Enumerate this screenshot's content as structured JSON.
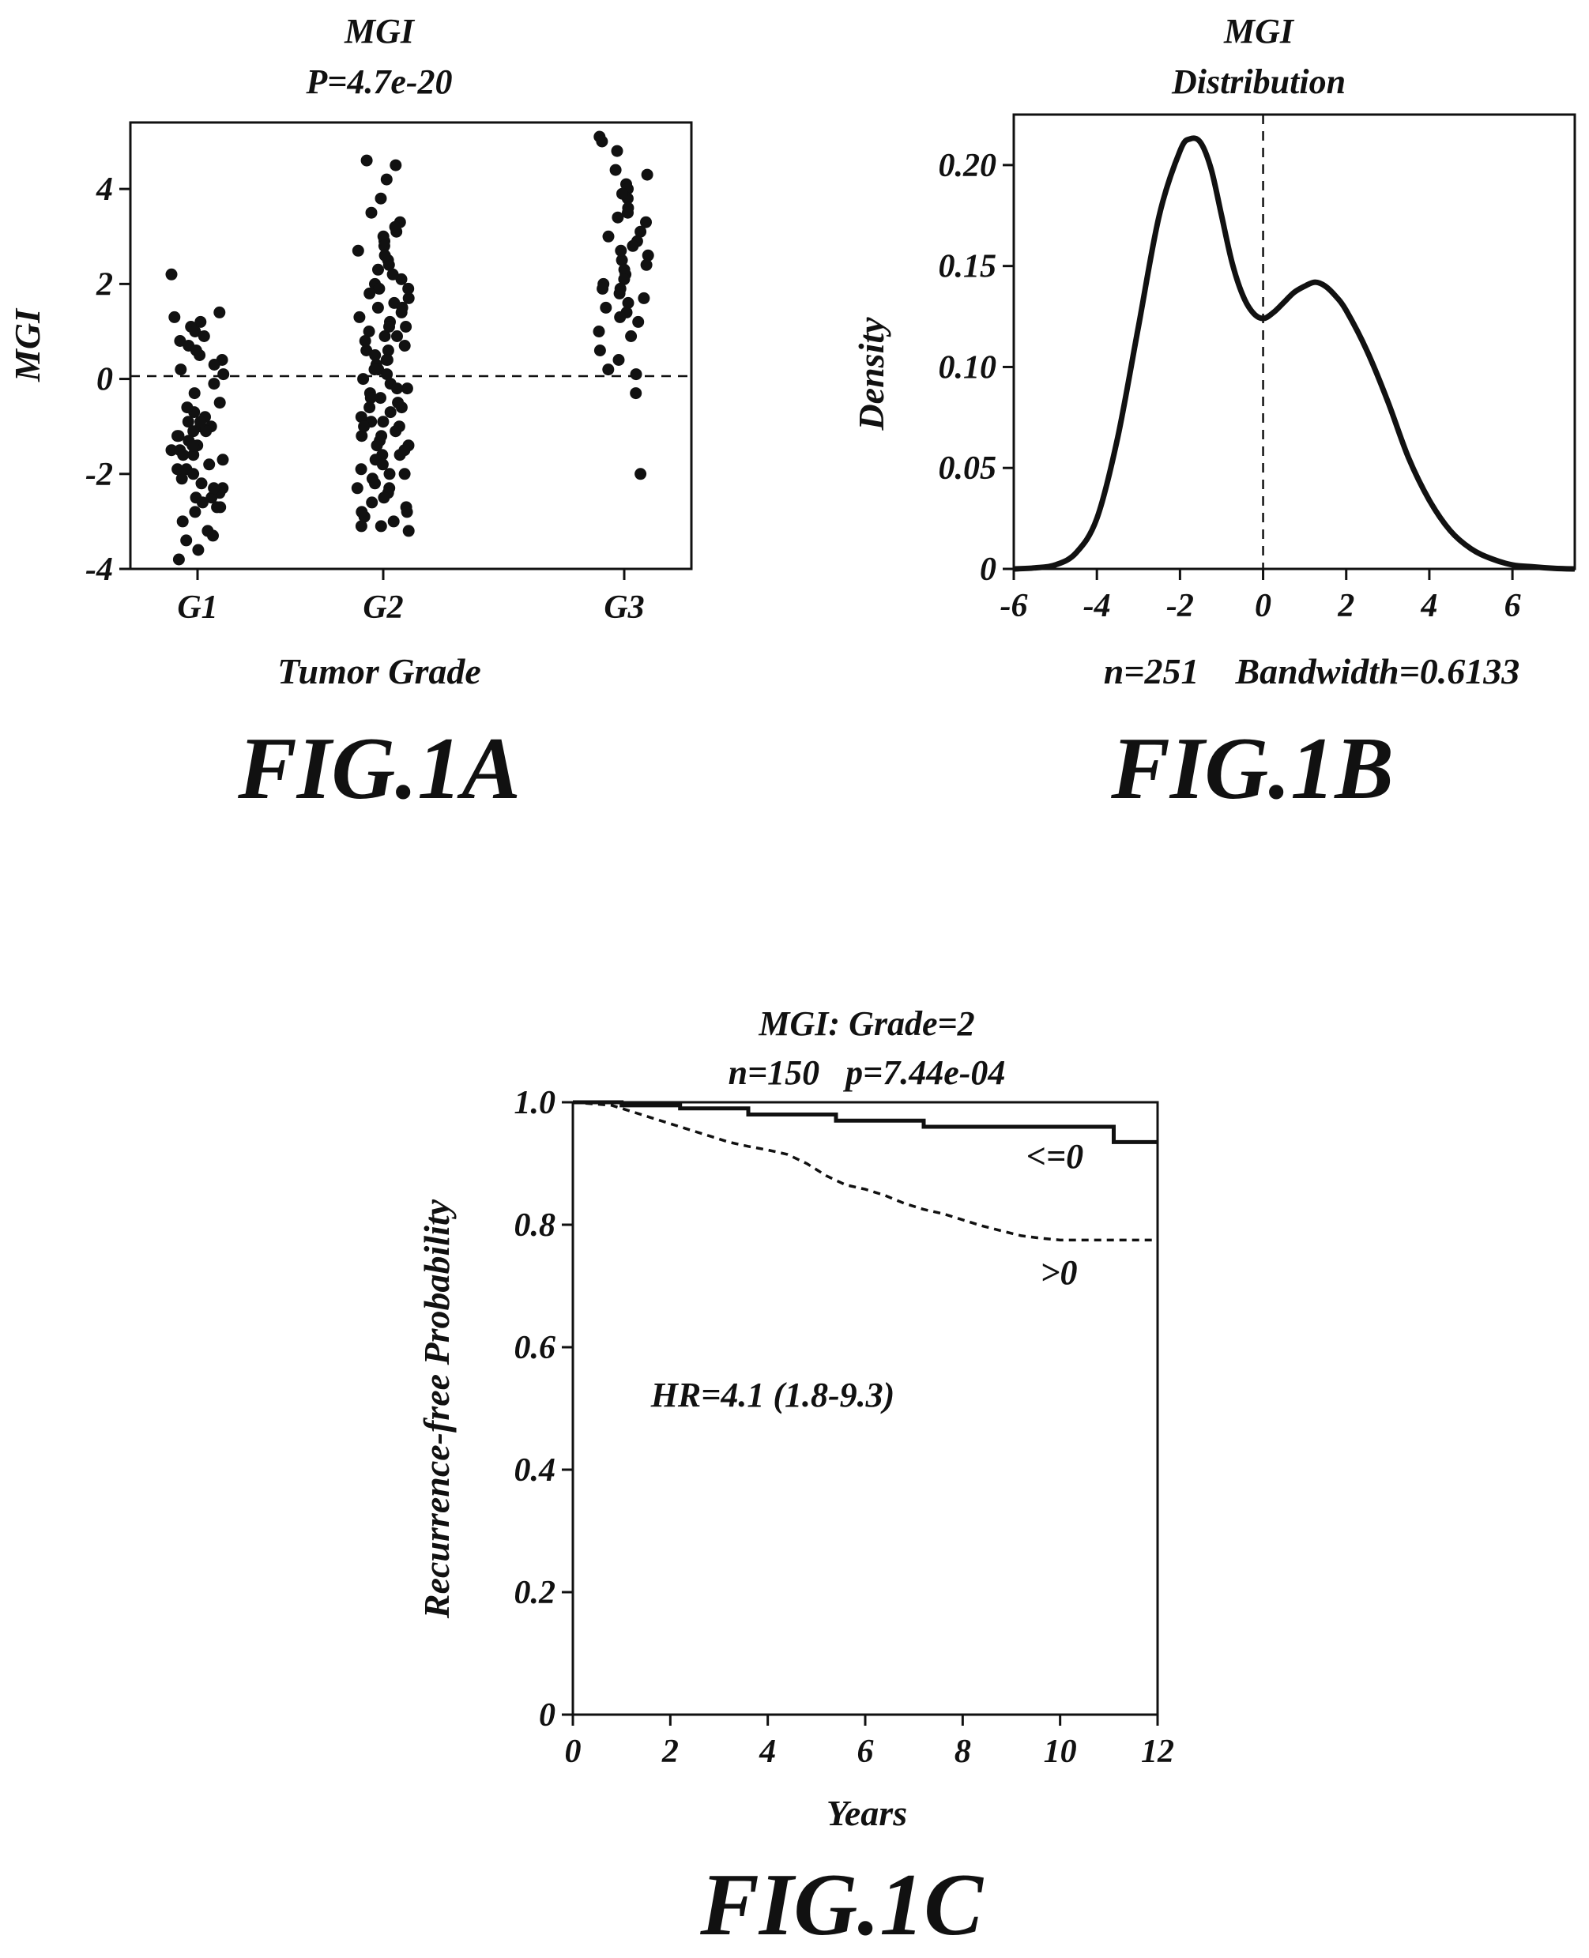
{
  "chart_data": [
    {
      "id": "fig1a",
      "type": "scatter",
      "title": "MGI",
      "subtitle": "P=4.7e-20",
      "xlabel": "Tumor Grade",
      "ylabel": "MGI",
      "categories": [
        "G1",
        "G2",
        "G3"
      ],
      "x_ticks": [
        "G1",
        "G2",
        "G3"
      ],
      "y_ticks": [
        -4,
        -2,
        0,
        2,
        4
      ],
      "ylim": [
        -4,
        5.4
      ],
      "reference_line": 0,
      "figure_label": "FIG.1A",
      "series": [
        {
          "category": "G1",
          "values": [
            2.2,
            1.4,
            1.3,
            1.2,
            1.1,
            1.0,
            0.9,
            0.8,
            0.7,
            0.5,
            0.4,
            0.3,
            0.2,
            0.1,
            -0.1,
            -0.3,
            -0.5,
            -0.7,
            -0.8,
            -0.9,
            -1.0,
            -1.0,
            -1.1,
            -1.1,
            -1.2,
            -1.3,
            -1.4,
            -1.5,
            -1.5,
            -1.6,
            -1.7,
            -1.8,
            -1.9,
            -2.0,
            -2.1,
            -2.2,
            -2.3,
            -2.4,
            -2.5,
            -2.5,
            -2.6,
            -2.7,
            -2.8,
            -3.0,
            -3.2,
            -3.3,
            -3.4,
            -3.6,
            -3.8,
            -1.2,
            -0.6,
            -1.9,
            -2.3,
            -0.9,
            -1.4,
            -2.7,
            0.6,
            -1.6
          ]
        },
        {
          "category": "G2",
          "values": [
            4.6,
            4.5,
            4.2,
            3.8,
            3.5,
            3.3,
            3.1,
            3.0,
            2.9,
            2.8,
            2.7,
            2.5,
            2.4,
            2.3,
            2.1,
            2.0,
            1.9,
            1.8,
            1.7,
            1.6,
            1.5,
            1.4,
            1.3,
            1.2,
            1.1,
            1.0,
            0.9,
            0.8,
            0.7,
            0.6,
            0.5,
            0.4,
            0.3,
            0.2,
            0.1,
            0.0,
            -0.1,
            -0.2,
            -0.3,
            -0.4,
            -0.5,
            -0.6,
            -0.7,
            -0.8,
            -0.9,
            -1.0,
            -1.1,
            -1.2,
            -1.3,
            -1.4,
            -1.5,
            -1.6,
            -1.7,
            -1.8,
            -1.9,
            -2.0,
            -2.1,
            -2.2,
            -2.3,
            -2.4,
            -2.5,
            -2.6,
            -2.7,
            -2.8,
            -2.9,
            -3.0,
            -3.1,
            -3.2,
            2.6,
            1.5,
            0.6,
            -0.4,
            -1.2,
            -2.3,
            3.2,
            0.2,
            -0.6,
            -1.6,
            1.9,
            -0.9,
            -2.8,
            0.9,
            -1.4,
            2.2,
            -0.2,
            -2.0,
            1.1,
            -1.0,
            -3.1,
            0.4
          ]
        },
        {
          "category": "G3",
          "values": [
            5.1,
            5.0,
            4.8,
            4.4,
            4.3,
            4.1,
            4.0,
            3.8,
            3.6,
            3.5,
            3.4,
            3.3,
            3.1,
            3.0,
            2.9,
            2.8,
            2.6,
            2.5,
            2.4,
            2.3,
            2.2,
            2.1,
            2.0,
            1.9,
            1.8,
            1.7,
            1.6,
            1.5,
            1.4,
            1.2,
            1.0,
            0.9,
            0.6,
            0.4,
            0.2,
            0.1,
            -0.3,
            -2.0,
            3.9,
            2.7,
            1.9,
            1.3
          ]
        }
      ]
    },
    {
      "id": "fig1b",
      "type": "line",
      "title": "MGI",
      "subtitle": "Distribution",
      "ylabel": "Density",
      "xlabel": "n=251    Bandwidth=0.6133",
      "x_ticks": [
        -6,
        -4,
        -2,
        0,
        2,
        4,
        6
      ],
      "y_ticks": [
        0,
        0.05,
        0.1,
        0.15,
        0.2
      ],
      "y_tick_labels": [
        "0",
        "0.05",
        "0.10",
        "0.15",
        "0.20"
      ],
      "xlim": [
        -6,
        7.5
      ],
      "ylim": [
        0,
        0.225
      ],
      "reference_line_x": 0,
      "figure_label": "FIG.1B",
      "x": [
        -6,
        -5.5,
        -5,
        -4.5,
        -4,
        -3.5,
        -3,
        -2.5,
        -2,
        -1.75,
        -1.5,
        -1.25,
        -1,
        -0.75,
        -0.5,
        -0.25,
        0,
        0.25,
        0.5,
        0.75,
        1,
        1.25,
        1.5,
        1.75,
        2,
        2.5,
        3,
        3.5,
        4,
        4.5,
        5,
        5.5,
        6,
        6.5,
        7,
        7.5
      ],
      "y": [
        0.0,
        0.0005,
        0.002,
        0.008,
        0.025,
        0.065,
        0.12,
        0.175,
        0.207,
        0.213,
        0.211,
        0.198,
        0.175,
        0.152,
        0.136,
        0.127,
        0.124,
        0.127,
        0.132,
        0.137,
        0.14,
        0.142,
        0.14,
        0.135,
        0.128,
        0.108,
        0.083,
        0.055,
        0.034,
        0.019,
        0.01,
        0.005,
        0.002,
        0.001,
        0.0003,
        0.0
      ]
    },
    {
      "id": "fig1c",
      "type": "line",
      "title": "MGI: Grade=2",
      "subtitle": "n=150   p=7.44e-04",
      "xlabel": "Years",
      "ylabel": "Recurrence-free Probability",
      "x_ticks": [
        0,
        2,
        4,
        6,
        8,
        10,
        12
      ],
      "y_ticks": [
        0,
        0.2,
        0.4,
        0.6,
        0.8,
        1.0
      ],
      "y_tick_labels": [
        "0",
        "0.2",
        "0.4",
        "0.6",
        "0.8",
        "1.0"
      ],
      "xlim": [
        0,
        12
      ],
      "ylim": [
        0,
        1.0
      ],
      "annotation": "HR=4.1 (1.8-9.3)",
      "figure_label": "FIG.1C",
      "series": [
        {
          "name": "<=0",
          "style": "solid",
          "x": [
            0,
            1.0,
            1.0,
            2.2,
            2.2,
            3.6,
            3.6,
            5.4,
            5.4,
            7.2,
            7.2,
            11.1,
            11.1,
            12
          ],
          "y": [
            1.0,
            1.0,
            0.995,
            0.995,
            0.99,
            0.99,
            0.98,
            0.98,
            0.97,
            0.97,
            0.96,
            0.96,
            0.935,
            0.935
          ]
        },
        {
          "name": ">0",
          "style": "dashed",
          "x": [
            0,
            0.8,
            1.2,
            1.6,
            2.0,
            2.4,
            2.8,
            3.2,
            3.6,
            4.0,
            4.4,
            4.8,
            5.2,
            5.6,
            6.0,
            6.4,
            6.8,
            7.2,
            7.6,
            8.0,
            8.4,
            8.8,
            9.2,
            9.6,
            10.0,
            12
          ],
          "y": [
            1.0,
            0.995,
            0.985,
            0.975,
            0.965,
            0.955,
            0.945,
            0.935,
            0.928,
            0.922,
            0.915,
            0.9,
            0.88,
            0.865,
            0.858,
            0.848,
            0.835,
            0.825,
            0.818,
            0.808,
            0.798,
            0.79,
            0.782,
            0.778,
            0.775,
            0.775
          ]
        }
      ]
    }
  ]
}
